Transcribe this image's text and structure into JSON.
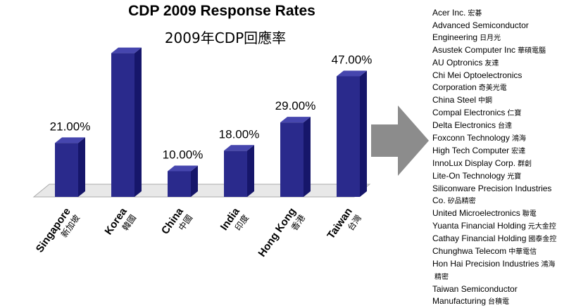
{
  "chart_data": {
    "type": "bar",
    "title": "CDP 2009 Response Rates",
    "subtitle": "2009年CDP回應率",
    "categories": [
      "Singapore",
      "Korea",
      "China",
      "India",
      "Hong Kong",
      "Taiwan"
    ],
    "categories_zh": [
      "新加坡",
      "韓國",
      "中國",
      "印度",
      "香港",
      "台灣"
    ],
    "values": [
      21.0,
      56.0,
      10.0,
      18.0,
      29.0,
      47.0
    ],
    "value_labels": [
      "21.00%",
      "",
      "10.00%",
      "18.00%",
      "29.00%",
      "47.00%"
    ],
    "ylim": [
      0,
      60
    ],
    "grid": false,
    "colors": {
      "bar_front": "#2a2a8c",
      "bar_side": "#16166a",
      "bar_top": "#4646ae",
      "floor": "#e8e8e8",
      "arrow": "#8c8c8c"
    }
  },
  "companies": [
    {
      "text": "Acer Inc.",
      "zh": "宏碁"
    },
    {
      "text": "Advanced Semiconductor",
      "zh": ""
    },
    {
      "text": "Engineering",
      "zh": "日月光"
    },
    {
      "text": "Asustek Computer Inc",
      "zh": "華碩電腦"
    },
    {
      "text": "AU Optronics",
      "zh": "友達"
    },
    {
      "text": "Chi Mei Optoelectronics",
      "zh": ""
    },
    {
      "text": "Corporation",
      "zh": "奇美光電"
    },
    {
      "text": "China Steel",
      "zh": "中鋼"
    },
    {
      "text": "Compal Electronics",
      "zh": "仁寶"
    },
    {
      "text": "Delta Electronics",
      "zh": "台達"
    },
    {
      "text": "Foxconn Technology",
      "zh": "鴻海"
    },
    {
      "text": "High Tech Computer",
      "zh": "宏達"
    },
    {
      "text": "InnoLux Display Corp.",
      "zh": "群創"
    },
    {
      "text": "Lite-On Technology",
      "zh": "光寶"
    },
    {
      "text": "Siliconware Precision Industries",
      "zh": ""
    },
    {
      "text": "Co.",
      "zh": "矽品精密"
    },
    {
      "text": "United Microelectronics",
      "zh": "聯電"
    },
    {
      "text": "Yuanta Financial Holding",
      "zh": "元大金控"
    },
    {
      "text": "Cathay Financial Holding",
      "zh": "國泰金控"
    },
    {
      "text": "Chunghwa Telecom",
      "zh": "中華電信"
    },
    {
      "text": "Hon Hai Precision Industries",
      "zh": "鴻海"
    },
    {
      "text": "",
      "zh": "精密"
    },
    {
      "text": "Taiwan Semiconductor",
      "zh": ""
    },
    {
      "text": "Manufacturing",
      "zh": "台積電"
    }
  ]
}
